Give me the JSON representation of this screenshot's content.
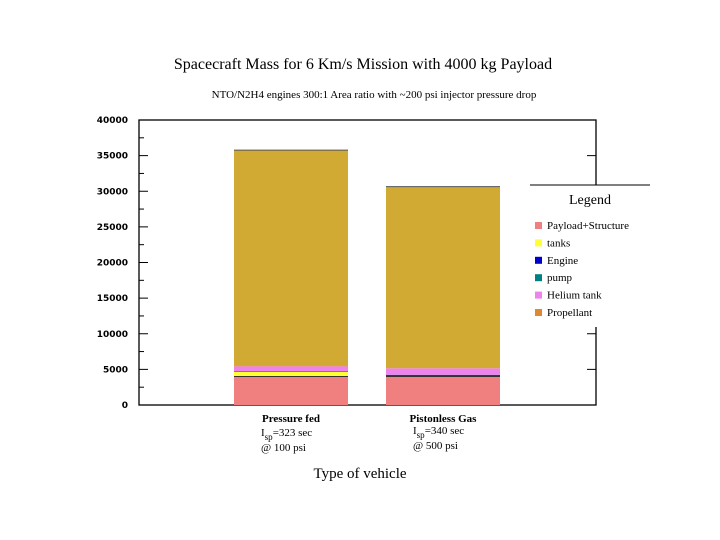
{
  "chart_data": {
    "type": "bar",
    "stacked": true,
    "title": "Spacecraft Mass for 6 Km/s Mission with 4000 kg Payload",
    "subtitle": "NTO/N2H4 engines 300:1 Area ratio with ~200 psi injector pressure drop",
    "xlabel": "Type of vehicle",
    "ylabel": "",
    "ylim": [
      0,
      40000
    ],
    "yticks": [
      "0",
      "5000",
      "10000",
      "15000",
      "20000",
      "25000",
      "30000",
      "35000",
      "40000"
    ],
    "categories": [
      "Pressure fed",
      "Pistonless Gas"
    ],
    "category_notes": [
      {
        "isp_label": "I",
        "isp_sub": "sp",
        "isp_value": "=323 sec",
        "pressure": "@ 100 psi"
      },
      {
        "isp_label": "I",
        "isp_sub": "sp",
        "isp_value": "=340 sec",
        "pressure": "@ 500 psi"
      }
    ],
    "series": [
      {
        "name": "Payload+Structure",
        "color": "#f08080",
        "values": [
          4000,
          4000
        ]
      },
      {
        "name": "tanks",
        "color": "#ffff33",
        "values": [
          650,
          60
        ]
      },
      {
        "name": "Engine",
        "color": "#0000cc",
        "values": [
          80,
          80
        ]
      },
      {
        "name": "pump",
        "color": "#008080",
        "values": [
          0,
          100
        ]
      },
      {
        "name": "Helium tank",
        "color": "#ee82ee",
        "values": [
          700,
          900
        ]
      },
      {
        "name": "Propellant",
        "color": "#e08830",
        "values": [
          150,
          30
        ]
      },
      {
        "name": "",
        "color": "#d0aa33",
        "values": [
          30200,
          25480
        ]
      }
    ],
    "legend": {
      "title": "Legend",
      "placement": "right"
    },
    "grid": false
  }
}
